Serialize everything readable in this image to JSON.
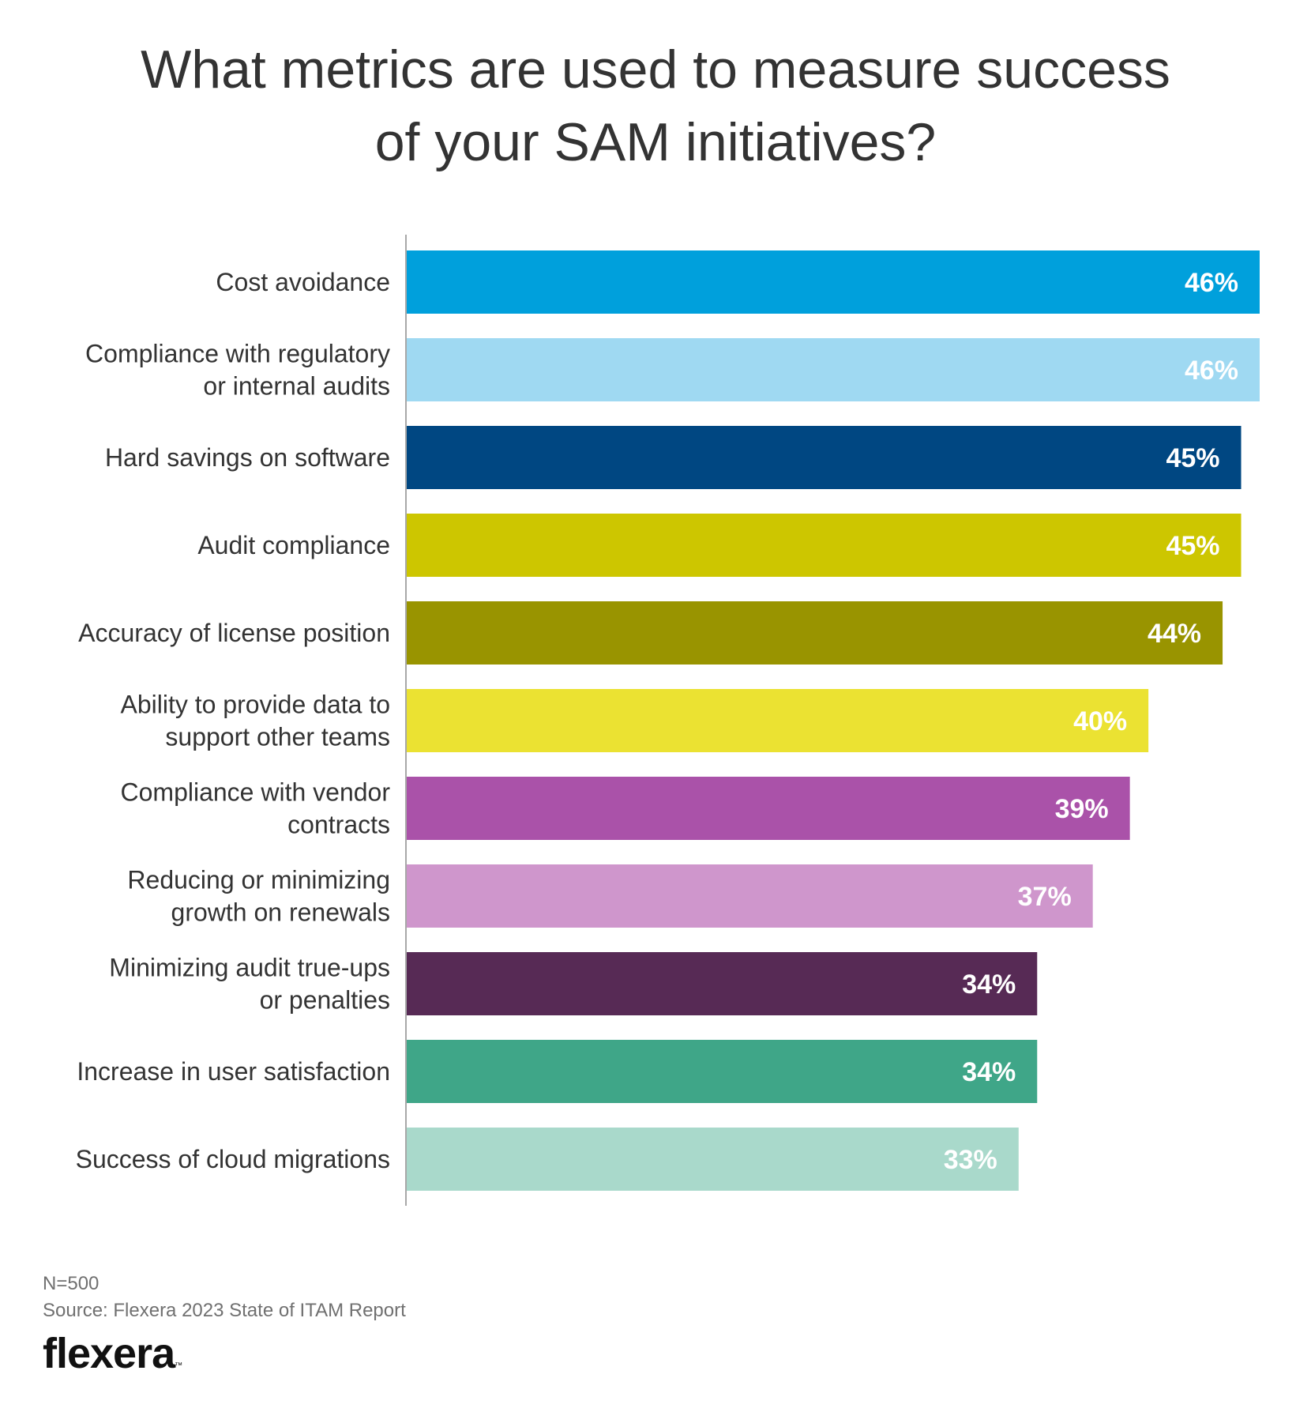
{
  "header": {
    "title_line1": "What metrics are used to measure success",
    "title_line2": "of your SAM initiatives?"
  },
  "chart_data": {
    "type": "bar",
    "orientation": "horizontal",
    "title": "What metrics are used to measure success of your SAM initiatives?",
    "categories": [
      [
        "Cost avoidance"
      ],
      [
        "Compliance with regulatory",
        "or internal audits"
      ],
      [
        "Hard savings on software"
      ],
      [
        "Audit compliance"
      ],
      [
        "Accuracy of license position"
      ],
      [
        "Ability to provide data to",
        "support other teams"
      ],
      [
        "Compliance with vendor",
        "contracts"
      ],
      [
        "Reducing or minimizing",
        "growth on renewals"
      ],
      [
        "Minimizing audit true-ups",
        "or penalties"
      ],
      [
        "Increase in user satisfaction"
      ],
      [
        "Success of cloud migrations"
      ]
    ],
    "values": [
      46,
      46,
      45,
      45,
      44,
      40,
      39,
      37,
      34,
      34,
      33
    ],
    "value_labels": [
      "46%",
      "46%",
      "45%",
      "45%",
      "44%",
      "40%",
      "39%",
      "37%",
      "34%",
      "34%",
      "33%"
    ],
    "colors": [
      "#00a0dc",
      "#9fd9f2",
      "#004782",
      "#cdc600",
      "#999400",
      "#ebe232",
      "#aa52a9",
      "#cf96cc",
      "#572a55",
      "#3fa688",
      "#a9d9cb"
    ],
    "xlim": [
      0,
      46
    ],
    "xlabel": "",
    "ylabel": "",
    "grid": false
  },
  "footer": {
    "n": "N=500",
    "source": "Source: Flexera 2023 State of ITAM Report"
  },
  "logo": {
    "text": "flexera",
    "tm": "™"
  }
}
